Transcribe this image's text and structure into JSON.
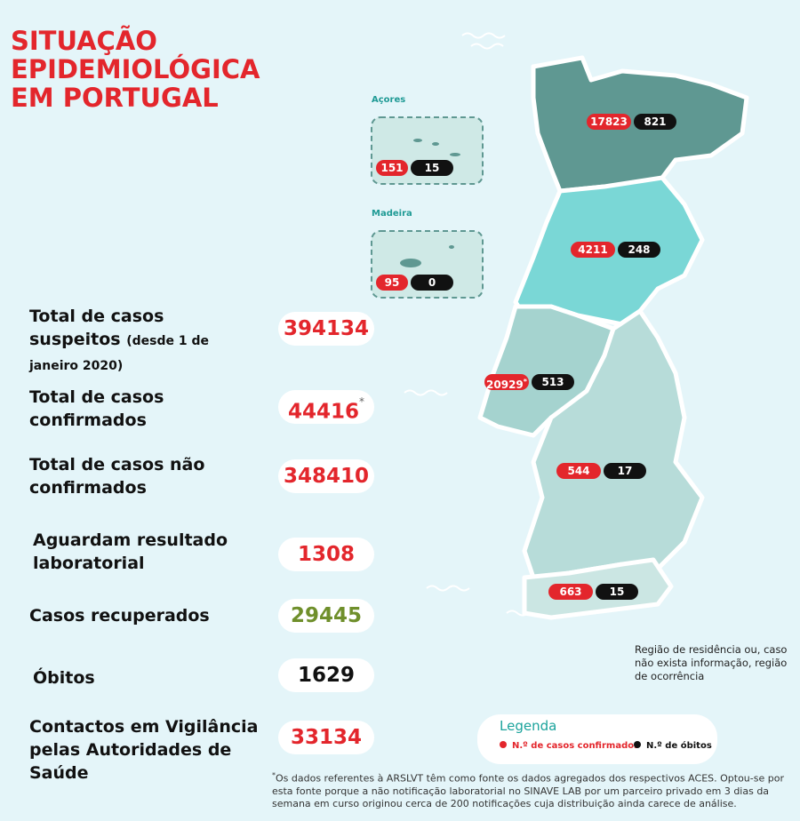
{
  "header": {
    "title": "SITUAÇÃO EPIDEMIOLÓGICA EM PORTUGAL"
  },
  "stats": [
    {
      "label": "Total de casos suspeitos",
      "note": "(desde 1 de janeiro 2020)",
      "value": 394134
    },
    {
      "label": "Total de casos confirmados",
      "value": 44416,
      "mark": "*"
    },
    {
      "label": "Total de casos não confirmados",
      "value": 348410
    },
    {
      "label": "Aguardam resultado laboratorial",
      "value": 1308
    },
    {
      "label": "Casos recuperados",
      "value": 29445
    },
    {
      "label": "Óbitos",
      "value": 1629
    },
    {
      "label": "Contactos em Vigilância pelas Autoridades de Saúde",
      "value": 33134
    }
  ],
  "islands": [
    {
      "label": "Açores",
      "confirmed": 151,
      "deaths": 15
    },
    {
      "label": "Madeira",
      "confirmed": 95,
      "deaths": 0
    }
  ],
  "regions": [
    {
      "confirmed": 17823,
      "deaths": 821
    },
    {
      "confirmed": 4211,
      "deaths": 248
    },
    {
      "confirmed": 20929,
      "deaths": 513,
      "mark": "*"
    },
    {
      "confirmed": 544,
      "deaths": 17
    },
    {
      "confirmed": 663,
      "deaths": 15
    }
  ],
  "residence_note": "Região de residência ou, caso não exista informação, região de ocorrência",
  "legend": {
    "title": "Legenda",
    "items": [
      "N.º de casos confirmados",
      "N.º de óbitos"
    ]
  },
  "footnote": {
    "mark": "*",
    "text": "Os dados referentes à ARSLVT têm como fonte os dados agregados dos respectivos ACES. Optou-se por esta fonte porque a não notificação laboratorial no SINAVE LAB por um parceiro privado em 3 dias da semana em curso originou cerca de 200 notificações cuja distribuição ainda carece de análise."
  }
}
